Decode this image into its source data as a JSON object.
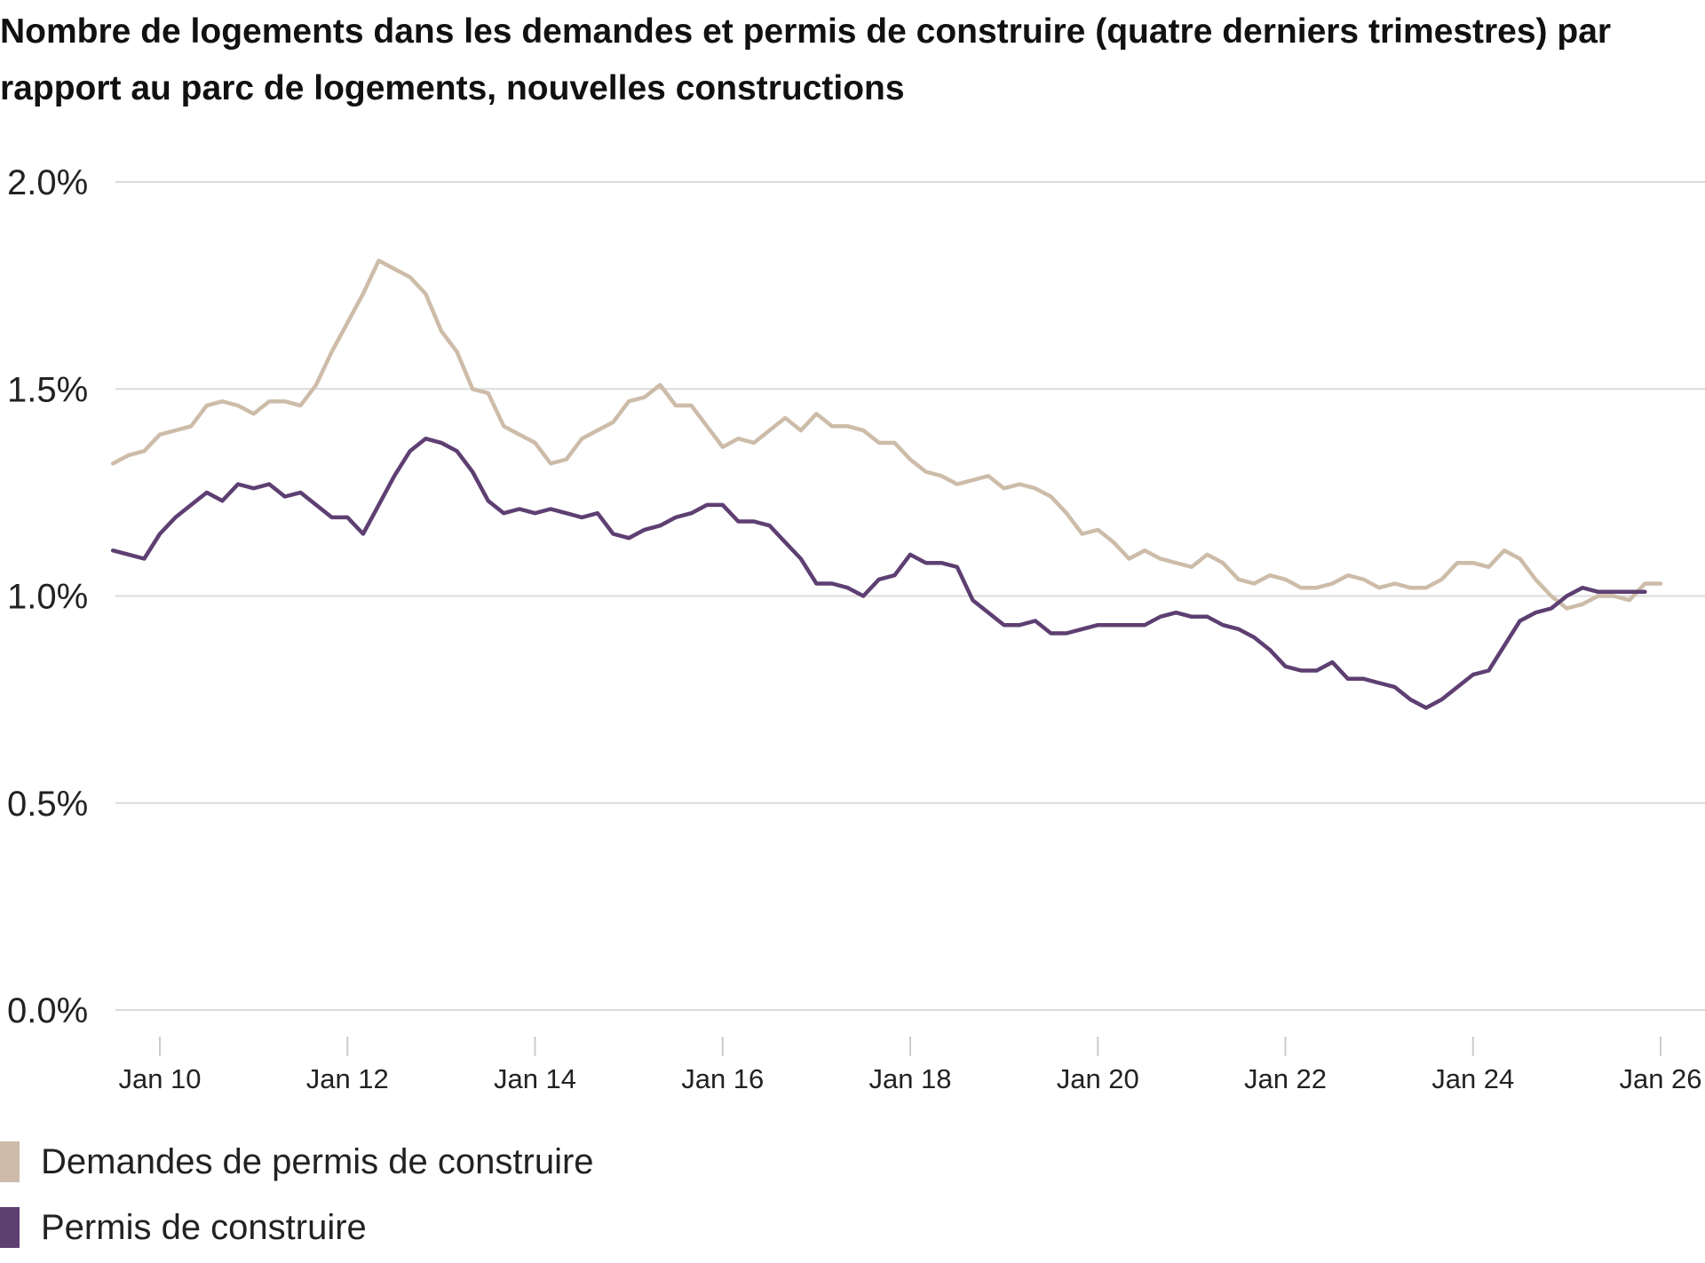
{
  "title": "Nombre de logements dans les demandes et permis de construire (quatre derniers trimestres) par rapport au parc de logements, nouvelles constructions",
  "chart_data": {
    "type": "line",
    "title": "Nombre de logements dans les demandes et permis de construire (quatre derniers trimestres) par rapport au parc de logements, nouvelles constructions",
    "ylim": [
      0,
      2.0
    ],
    "yticks": [
      {
        "value": 0.0,
        "label": "0.0%"
      },
      {
        "value": 0.5,
        "label": "0.5%"
      },
      {
        "value": 1.0,
        "label": "1.0%"
      },
      {
        "value": 1.5,
        "label": "1.5%"
      },
      {
        "value": 2.0,
        "label": "2.0%"
      }
    ],
    "xlim": [
      "2009-07",
      "2026-07"
    ],
    "xticks": [
      {
        "value": "2010-01",
        "label": "Jan 10"
      },
      {
        "value": "2012-01",
        "label": "Jan 12"
      },
      {
        "value": "2014-01",
        "label": "Jan 14"
      },
      {
        "value": "2016-01",
        "label": "Jan 16"
      },
      {
        "value": "2018-01",
        "label": "Jan 18"
      },
      {
        "value": "2020-01",
        "label": "Jan 20"
      },
      {
        "value": "2022-01",
        "label": "Jan 22"
      },
      {
        "value": "2024-01",
        "label": "Jan 24"
      },
      {
        "value": "2026-01",
        "label": "Jan 26"
      }
    ],
    "grid": true,
    "legend_placement": "bottom-left",
    "series": [
      {
        "name": "Demandes de permis de construire",
        "color": "#cdbca9",
        "points": [
          [
            "2009-07",
            1.32
          ],
          [
            "2009-09",
            1.34
          ],
          [
            "2009-11",
            1.35
          ],
          [
            "2010-01",
            1.39
          ],
          [
            "2010-03",
            1.4
          ],
          [
            "2010-05",
            1.41
          ],
          [
            "2010-07",
            1.46
          ],
          [
            "2010-09",
            1.47
          ],
          [
            "2010-11",
            1.46
          ],
          [
            "2011-01",
            1.44
          ],
          [
            "2011-03",
            1.47
          ],
          [
            "2011-05",
            1.47
          ],
          [
            "2011-07",
            1.46
          ],
          [
            "2011-09",
            1.51
          ],
          [
            "2011-11",
            1.59
          ],
          [
            "2012-01",
            1.66
          ],
          [
            "2012-03",
            1.73
          ],
          [
            "2012-05",
            1.81
          ],
          [
            "2012-07",
            1.79
          ],
          [
            "2012-09",
            1.77
          ],
          [
            "2012-11",
            1.73
          ],
          [
            "2013-01",
            1.64
          ],
          [
            "2013-03",
            1.59
          ],
          [
            "2013-05",
            1.5
          ],
          [
            "2013-07",
            1.49
          ],
          [
            "2013-09",
            1.41
          ],
          [
            "2013-11",
            1.39
          ],
          [
            "2014-01",
            1.37
          ],
          [
            "2014-03",
            1.32
          ],
          [
            "2014-05",
            1.33
          ],
          [
            "2014-07",
            1.38
          ],
          [
            "2014-09",
            1.4
          ],
          [
            "2014-11",
            1.42
          ],
          [
            "2015-01",
            1.47
          ],
          [
            "2015-03",
            1.48
          ],
          [
            "2015-05",
            1.51
          ],
          [
            "2015-07",
            1.46
          ],
          [
            "2015-09",
            1.46
          ],
          [
            "2015-11",
            1.41
          ],
          [
            "2016-01",
            1.36
          ],
          [
            "2016-03",
            1.38
          ],
          [
            "2016-05",
            1.37
          ],
          [
            "2016-07",
            1.4
          ],
          [
            "2016-09",
            1.43
          ],
          [
            "2016-11",
            1.4
          ],
          [
            "2017-01",
            1.44
          ],
          [
            "2017-03",
            1.41
          ],
          [
            "2017-05",
            1.41
          ],
          [
            "2017-07",
            1.4
          ],
          [
            "2017-09",
            1.37
          ],
          [
            "2017-11",
            1.37
          ],
          [
            "2018-01",
            1.33
          ],
          [
            "2018-03",
            1.3
          ],
          [
            "2018-05",
            1.29
          ],
          [
            "2018-07",
            1.27
          ],
          [
            "2018-09",
            1.28
          ],
          [
            "2018-11",
            1.29
          ],
          [
            "2019-01",
            1.26
          ],
          [
            "2019-03",
            1.27
          ],
          [
            "2019-05",
            1.26
          ],
          [
            "2019-07",
            1.24
          ],
          [
            "2019-09",
            1.2
          ],
          [
            "2019-11",
            1.15
          ],
          [
            "2020-01",
            1.16
          ],
          [
            "2020-03",
            1.13
          ],
          [
            "2020-05",
            1.09
          ],
          [
            "2020-07",
            1.11
          ],
          [
            "2020-09",
            1.09
          ],
          [
            "2020-11",
            1.08
          ],
          [
            "2021-01",
            1.07
          ],
          [
            "2021-03",
            1.1
          ],
          [
            "2021-05",
            1.08
          ],
          [
            "2021-07",
            1.04
          ],
          [
            "2021-09",
            1.03
          ],
          [
            "2021-11",
            1.05
          ],
          [
            "2022-01",
            1.04
          ],
          [
            "2022-03",
            1.02
          ],
          [
            "2022-05",
            1.02
          ],
          [
            "2022-07",
            1.03
          ],
          [
            "2022-09",
            1.05
          ],
          [
            "2022-11",
            1.04
          ],
          [
            "2023-01",
            1.02
          ],
          [
            "2023-03",
            1.03
          ],
          [
            "2023-05",
            1.02
          ],
          [
            "2023-07",
            1.02
          ],
          [
            "2023-09",
            1.04
          ],
          [
            "2023-11",
            1.08
          ],
          [
            "2024-01",
            1.08
          ],
          [
            "2024-03",
            1.07
          ],
          [
            "2024-05",
            1.11
          ],
          [
            "2024-07",
            1.09
          ],
          [
            "2024-09",
            1.04
          ],
          [
            "2024-11",
            1.0
          ],
          [
            "2025-01",
            0.97
          ],
          [
            "2025-03",
            0.98
          ],
          [
            "2025-05",
            1.0
          ],
          [
            "2025-07",
            1.0
          ],
          [
            "2025-09",
            0.99
          ],
          [
            "2025-11",
            1.03
          ],
          [
            "2026-01",
            1.03
          ]
        ]
      },
      {
        "name": "Permis de construire",
        "color": "#5e3f72",
        "points": [
          [
            "2009-07",
            1.11
          ],
          [
            "2009-09",
            1.1
          ],
          [
            "2009-11",
            1.09
          ],
          [
            "2010-01",
            1.15
          ],
          [
            "2010-03",
            1.19
          ],
          [
            "2010-05",
            1.22
          ],
          [
            "2010-07",
            1.25
          ],
          [
            "2010-09",
            1.23
          ],
          [
            "2010-11",
            1.27
          ],
          [
            "2011-01",
            1.26
          ],
          [
            "2011-03",
            1.27
          ],
          [
            "2011-05",
            1.24
          ],
          [
            "2011-07",
            1.25
          ],
          [
            "2011-09",
            1.22
          ],
          [
            "2011-11",
            1.19
          ],
          [
            "2012-01",
            1.19
          ],
          [
            "2012-03",
            1.15
          ],
          [
            "2012-05",
            1.22
          ],
          [
            "2012-07",
            1.29
          ],
          [
            "2012-09",
            1.35
          ],
          [
            "2012-11",
            1.38
          ],
          [
            "2013-01",
            1.37
          ],
          [
            "2013-03",
            1.35
          ],
          [
            "2013-05",
            1.3
          ],
          [
            "2013-07",
            1.23
          ],
          [
            "2013-09",
            1.2
          ],
          [
            "2013-11",
            1.21
          ],
          [
            "2014-01",
            1.2
          ],
          [
            "2014-03",
            1.21
          ],
          [
            "2014-05",
            1.2
          ],
          [
            "2014-07",
            1.19
          ],
          [
            "2014-09",
            1.2
          ],
          [
            "2014-11",
            1.15
          ],
          [
            "2015-01",
            1.14
          ],
          [
            "2015-03",
            1.16
          ],
          [
            "2015-05",
            1.17
          ],
          [
            "2015-07",
            1.19
          ],
          [
            "2015-09",
            1.2
          ],
          [
            "2015-11",
            1.22
          ],
          [
            "2016-01",
            1.22
          ],
          [
            "2016-03",
            1.18
          ],
          [
            "2016-05",
            1.18
          ],
          [
            "2016-07",
            1.17
          ],
          [
            "2016-09",
            1.13
          ],
          [
            "2016-11",
            1.09
          ],
          [
            "2017-01",
            1.03
          ],
          [
            "2017-03",
            1.03
          ],
          [
            "2017-05",
            1.02
          ],
          [
            "2017-07",
            1.0
          ],
          [
            "2017-09",
            1.04
          ],
          [
            "2017-11",
            1.05
          ],
          [
            "2018-01",
            1.1
          ],
          [
            "2018-03",
            1.08
          ],
          [
            "2018-05",
            1.08
          ],
          [
            "2018-07",
            1.07
          ],
          [
            "2018-09",
            0.99
          ],
          [
            "2018-11",
            0.96
          ],
          [
            "2019-01",
            0.93
          ],
          [
            "2019-03",
            0.93
          ],
          [
            "2019-05",
            0.94
          ],
          [
            "2019-07",
            0.91
          ],
          [
            "2019-09",
            0.91
          ],
          [
            "2019-11",
            0.92
          ],
          [
            "2020-01",
            0.93
          ],
          [
            "2020-03",
            0.93
          ],
          [
            "2020-05",
            0.93
          ],
          [
            "2020-07",
            0.93
          ],
          [
            "2020-09",
            0.95
          ],
          [
            "2020-11",
            0.96
          ],
          [
            "2021-01",
            0.95
          ],
          [
            "2021-03",
            0.95
          ],
          [
            "2021-05",
            0.93
          ],
          [
            "2021-07",
            0.92
          ],
          [
            "2021-09",
            0.9
          ],
          [
            "2021-11",
            0.87
          ],
          [
            "2022-01",
            0.83
          ],
          [
            "2022-03",
            0.82
          ],
          [
            "2022-05",
            0.82
          ],
          [
            "2022-07",
            0.84
          ],
          [
            "2022-09",
            0.8
          ],
          [
            "2022-11",
            0.8
          ],
          [
            "2023-01",
            0.79
          ],
          [
            "2023-03",
            0.78
          ],
          [
            "2023-05",
            0.75
          ],
          [
            "2023-07",
            0.73
          ],
          [
            "2023-09",
            0.75
          ],
          [
            "2023-11",
            0.78
          ],
          [
            "2024-01",
            0.81
          ],
          [
            "2024-03",
            0.82
          ],
          [
            "2024-05",
            0.88
          ],
          [
            "2024-07",
            0.94
          ],
          [
            "2024-09",
            0.96
          ],
          [
            "2024-11",
            0.97
          ],
          [
            "2025-01",
            1.0
          ],
          [
            "2025-03",
            1.02
          ],
          [
            "2025-05",
            1.01
          ],
          [
            "2025-07",
            1.01
          ],
          [
            "2025-09",
            1.01
          ],
          [
            "2025-11",
            1.01
          ]
        ]
      }
    ]
  }
}
